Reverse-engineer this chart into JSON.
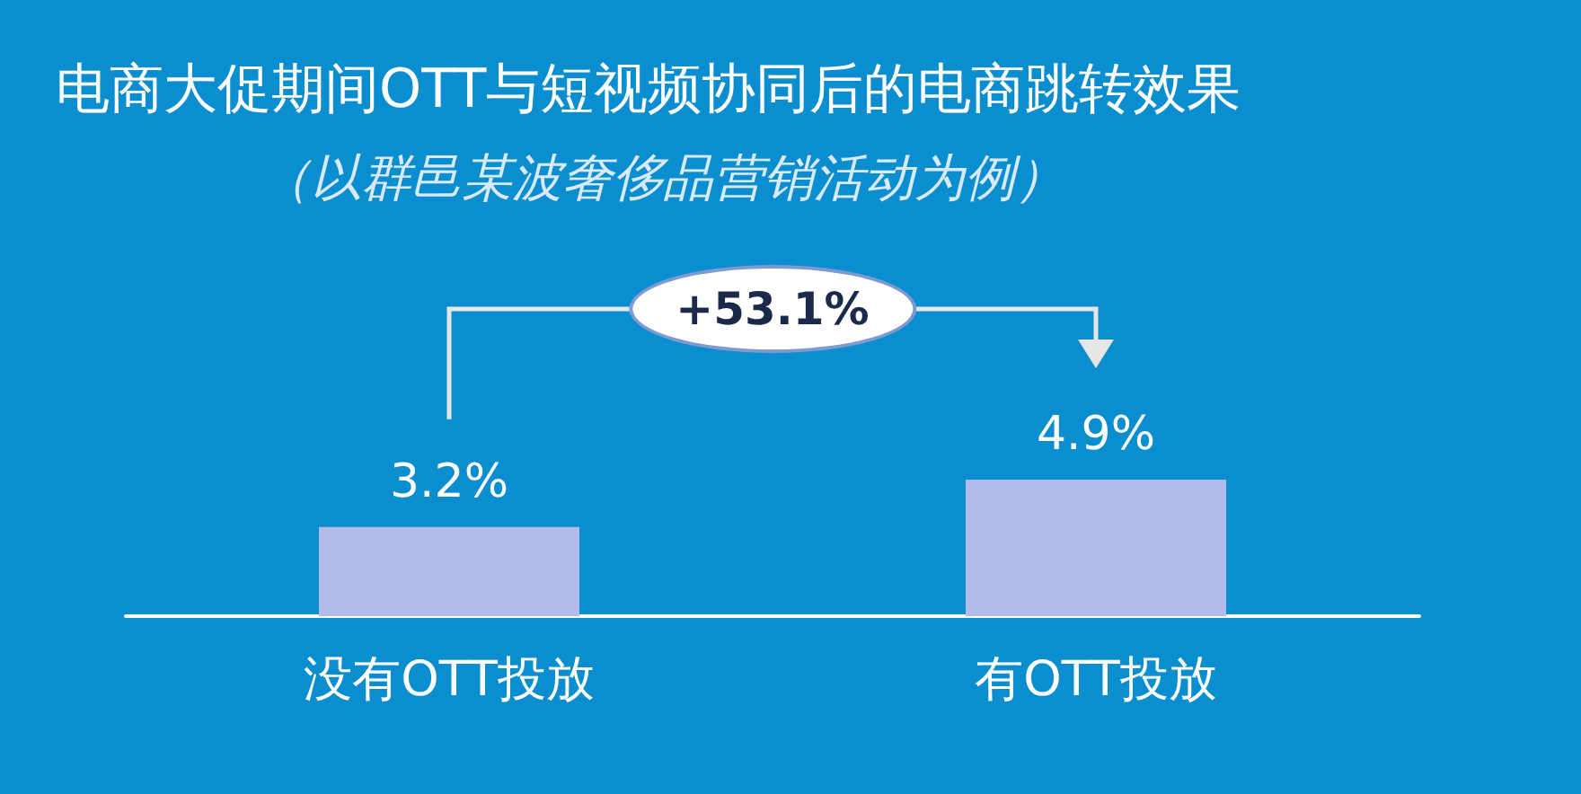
{
  "chart_data": {
    "type": "bar",
    "title": "电商大促期间OTT与短视频协同后的电商跳转效果",
    "subtitle": "（以群邑某波奢侈品营销活动为例）",
    "categories": [
      "没有OTT投放",
      "有OTT投放"
    ],
    "values": [
      3.2,
      4.9
    ],
    "color": "#b3bce9",
    "value_labels": [
      "3.2%",
      "4.9%"
    ],
    "annotations": [
      "+53.1%"
    ]
  }
}
